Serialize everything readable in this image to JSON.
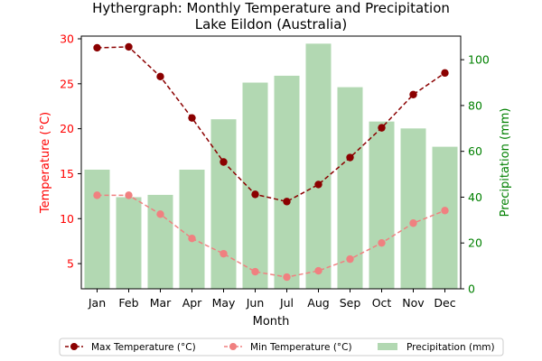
{
  "chart_data": {
    "type": "bar",
    "title": "Hythergraph: Monthly Temperature and Precipitation",
    "subtitle": "Lake Eildon (Australia)",
    "xlabel": "Month",
    "ylabel_left": "Temperature (°C)",
    "ylabel_right": "Precipitation (mm)",
    "categories": [
      "Jan",
      "Feb",
      "Mar",
      "Apr",
      "May",
      "Jun",
      "Jul",
      "Aug",
      "Sep",
      "Oct",
      "Nov",
      "Dec"
    ],
    "ylim_left": [
      2.2,
      30.3
    ],
    "ylim_right": [
      0,
      110.3
    ],
    "yticks_left": [
      5,
      10,
      15,
      20,
      25,
      30
    ],
    "yticks_right": [
      0,
      20,
      40,
      60,
      80,
      100
    ],
    "grid": false,
    "legend_placement": "bottom-center",
    "series": [
      {
        "name": "Max Temperature (°C)",
        "axis": "left",
        "kind": "line",
        "color": "#8b0000",
        "values": [
          29.0,
          29.1,
          25.8,
          21.2,
          16.3,
          12.7,
          11.9,
          13.8,
          16.8,
          20.1,
          23.8,
          26.2
        ]
      },
      {
        "name": "Min Temperature (°C)",
        "axis": "left",
        "kind": "line",
        "color": "#f08080",
        "values": [
          12.6,
          12.6,
          10.5,
          7.8,
          6.1,
          4.1,
          3.5,
          4.2,
          5.5,
          7.3,
          9.5,
          10.9
        ]
      },
      {
        "name": "Precipitation (mm)",
        "axis": "right",
        "kind": "bar",
        "color": "#b2d8b2",
        "values": [
          52,
          40,
          41,
          52,
          74,
          90,
          93,
          107,
          88,
          73,
          70,
          62
        ]
      }
    ],
    "colors": {
      "left_axis": "#ff0000",
      "right_axis": "#008000",
      "axis": "#000000"
    }
  }
}
